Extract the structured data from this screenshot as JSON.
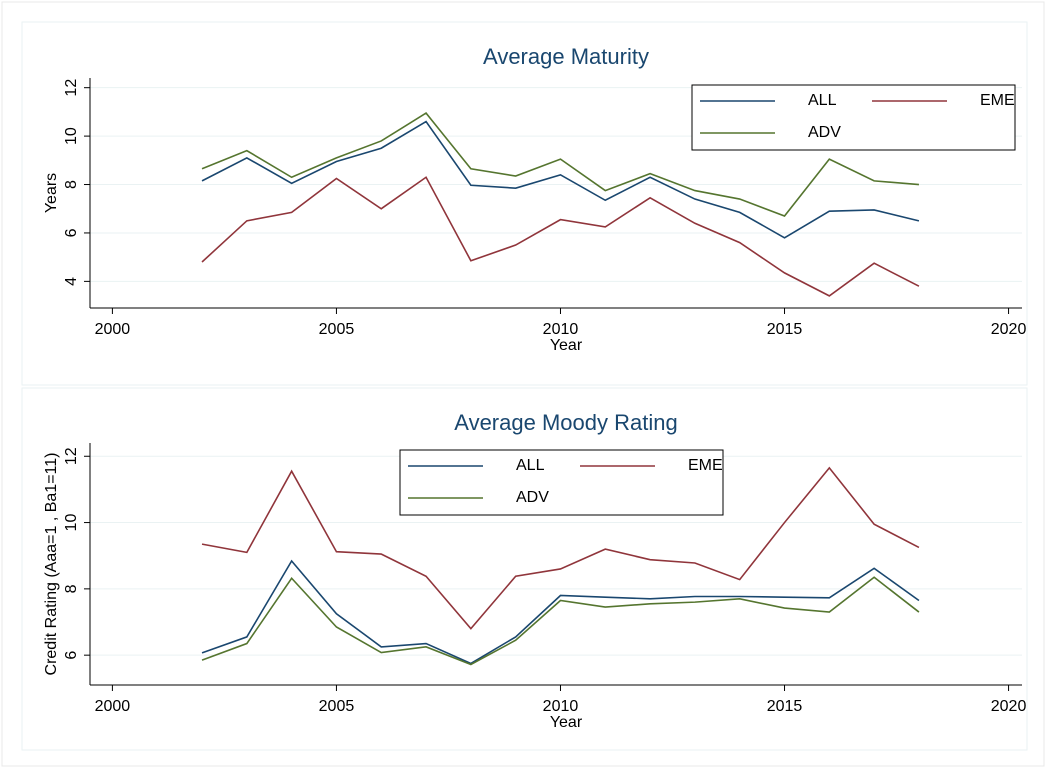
{
  "chart_data": [
    {
      "type": "line",
      "title": "Average Maturity",
      "x_label": "Year",
      "y_label": "Years",
      "x": [
        2002,
        2003,
        2004,
        2005,
        2006,
        2007,
        2008,
        2009,
        2010,
        2011,
        2012,
        2013,
        2014,
        2015,
        2016,
        2017,
        2018
      ],
      "series": [
        {
          "name": "ALL",
          "color": "#1a476f",
          "values": [
            8.15,
            9.1,
            8.05,
            8.95,
            9.5,
            10.6,
            7.97,
            7.85,
            8.4,
            7.35,
            8.3,
            7.4,
            6.85,
            5.8,
            6.9,
            6.95,
            6.5
          ]
        },
        {
          "name": "EME",
          "color": "#90353b",
          "values": [
            4.8,
            6.5,
            6.85,
            8.25,
            7.0,
            8.3,
            4.85,
            5.5,
            6.55,
            6.25,
            7.45,
            6.4,
            5.6,
            4.35,
            3.4,
            4.75,
            3.8
          ]
        },
        {
          "name": "ADV",
          "color": "#55752f",
          "values": [
            8.65,
            9.4,
            8.3,
            9.1,
            9.8,
            10.95,
            8.65,
            8.35,
            9.05,
            7.75,
            8.45,
            7.75,
            7.4,
            6.7,
            9.05,
            8.15,
            8.0
          ]
        }
      ],
      "xlim": [
        1999.5,
        2020.3
      ],
      "xticks": [
        2000,
        2005,
        2010,
        2015,
        2020
      ],
      "ylim": [
        2.9,
        12.4
      ],
      "yticks": [
        4,
        6,
        8,
        10,
        12
      ],
      "grid": true,
      "legend": "upper right"
    },
    {
      "type": "line",
      "title": "Average Moody Rating",
      "x_label": "Year",
      "y_label": "Credit Rating (Aaa=1 , Ba1=11)",
      "x": [
        2002,
        2003,
        2004,
        2005,
        2006,
        2007,
        2008,
        2009,
        2010,
        2011,
        2012,
        2013,
        2014,
        2015,
        2016,
        2017,
        2018
      ],
      "series": [
        {
          "name": "ALL",
          "color": "#1a476f",
          "values": [
            6.07,
            6.55,
            8.84,
            7.25,
            6.25,
            6.35,
            5.75,
            6.55,
            7.8,
            7.75,
            7.7,
            7.77,
            7.77,
            7.75,
            7.73,
            8.62,
            7.65
          ]
        },
        {
          "name": "EME",
          "color": "#90353b",
          "values": [
            9.35,
            9.1,
            11.55,
            9.12,
            9.05,
            8.38,
            6.8,
            8.38,
            8.6,
            9.2,
            8.88,
            8.78,
            8.28,
            10.0,
            11.65,
            9.95,
            9.25
          ]
        },
        {
          "name": "ADV",
          "color": "#55752f",
          "values": [
            5.85,
            6.35,
            8.32,
            6.85,
            6.08,
            6.25,
            5.72,
            6.45,
            7.65,
            7.45,
            7.55,
            7.6,
            7.7,
            7.42,
            7.3,
            8.35,
            7.3
          ]
        }
      ],
      "xlim": [
        1999.5,
        2020.3
      ],
      "xticks": [
        2000,
        2005,
        2010,
        2015,
        2020
      ],
      "ylim": [
        5.1,
        12.4
      ],
      "yticks": [
        6,
        8,
        10,
        12
      ],
      "grid": true,
      "legend": "upper center"
    }
  ]
}
